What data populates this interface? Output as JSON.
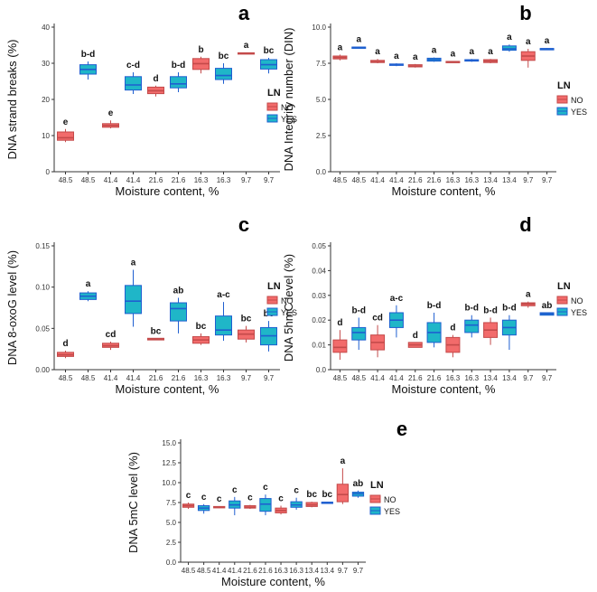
{
  "legend": {
    "title": "LN",
    "entries": [
      "NO",
      "YES"
    ]
  },
  "colors": {
    "NO": "#f26b6b",
    "YES": "#1fb6c8",
    "NO_dark": "#c44a4a",
    "YES_dark": "#1f5fd0"
  },
  "chart_data": [
    {
      "id": "a",
      "type": "box",
      "panel_label": "a",
      "ylabel": "DNA strand breaks (%)",
      "xlabel": "Moisture content, %",
      "ylim": [
        0,
        40
      ],
      "yticks": [
        0,
        10,
        20,
        30,
        40
      ],
      "tick_labels": [
        "0",
        "10",
        "20",
        "30",
        "40"
      ],
      "categories": [
        "48.5",
        "48.5",
        "41.4",
        "41.4",
        "21.6",
        "21.6",
        "16.3",
        "16.3",
        "9.7",
        "9.7"
      ],
      "groups": [
        "NO",
        "YES",
        "NO",
        "YES",
        "NO",
        "YES",
        "NO",
        "YES",
        "NO",
        "YES"
      ],
      "letters": [
        "e",
        "b-d",
        "e",
        "c-d",
        "d",
        "b-d",
        "b",
        "bc",
        "a",
        "bc"
      ],
      "boxes": [
        {
          "min": 8.2,
          "q1": 8.7,
          "median": 9.4,
          "q3": 11.0,
          "max": 11.8
        },
        {
          "min": 25.5,
          "q1": 27.0,
          "median": 28.3,
          "q3": 29.6,
          "max": 30.5
        },
        {
          "min": 12.0,
          "q1": 12.3,
          "median": 12.8,
          "q3": 13.3,
          "max": 14.2
        },
        {
          "min": 21.5,
          "q1": 22.6,
          "median": 24.0,
          "q3": 26.3,
          "max": 27.5
        },
        {
          "min": 20.8,
          "q1": 21.6,
          "median": 22.4,
          "q3": 23.4,
          "max": 23.8
        },
        {
          "min": 22.0,
          "q1": 23.2,
          "median": 24.3,
          "q3": 26.3,
          "max": 27.5
        },
        {
          "min": 27.2,
          "q1": 28.3,
          "median": 29.9,
          "q3": 31.3,
          "max": 31.8
        },
        {
          "min": 24.3,
          "q1": 25.5,
          "median": 26.6,
          "q3": 28.6,
          "max": 30.0
        },
        {
          "min": 32.5,
          "q1": 32.6,
          "median": 32.7,
          "q3": 32.9,
          "max": 33.0
        },
        {
          "min": 27.2,
          "q1": 28.4,
          "median": 29.6,
          "q3": 31.0,
          "max": 31.5
        }
      ]
    },
    {
      "id": "b",
      "type": "box",
      "panel_label": "b",
      "ylabel": "DNA Integrity number (DIN)",
      "xlabel": "Moisture content, %",
      "ylim": [
        0,
        10
      ],
      "yticks": [
        0,
        2.5,
        5,
        7.5,
        10
      ],
      "tick_labels": [
        "0.0",
        "2.5",
        "5.0",
        "7.5",
        "10.0"
      ],
      "categories": [
        "48.5",
        "48.5",
        "41.4",
        "41.4",
        "21.6",
        "21.6",
        "16.3",
        "16.3",
        "13.4",
        "13.4",
        "9.7",
        "9.7"
      ],
      "groups": [
        "NO",
        "YES",
        "NO",
        "YES",
        "NO",
        "YES",
        "NO",
        "YES",
        "NO",
        "YES",
        "NO",
        "YES"
      ],
      "letters": [
        "a",
        "a",
        "a",
        "a",
        "a",
        "a",
        "a",
        "a",
        "a",
        "a",
        "a",
        "a"
      ],
      "boxes": [
        {
          "min": 7.7,
          "q1": 7.8,
          "median": 7.9,
          "q3": 8.0,
          "max": 8.1
        },
        {
          "min": 8.55,
          "q1": 8.58,
          "median": 8.6,
          "q3": 8.62,
          "max": 8.65
        },
        {
          "min": 7.5,
          "q1": 7.55,
          "median": 7.6,
          "q3": 7.7,
          "max": 7.8
        },
        {
          "min": 7.3,
          "q1": 7.35,
          "median": 7.4,
          "q3": 7.45,
          "max": 7.5
        },
        {
          "min": 7.2,
          "q1": 7.25,
          "median": 7.3,
          "q3": 7.4,
          "max": 7.45
        },
        {
          "min": 7.6,
          "q1": 7.65,
          "median": 7.75,
          "q3": 7.85,
          "max": 7.9
        },
        {
          "min": 7.55,
          "q1": 7.57,
          "median": 7.6,
          "q3": 7.63,
          "max": 7.65
        },
        {
          "min": 7.6,
          "q1": 7.65,
          "median": 7.7,
          "q3": 7.75,
          "max": 7.8
        },
        {
          "min": 7.5,
          "q1": 7.55,
          "median": 7.65,
          "q3": 7.75,
          "max": 7.8
        },
        {
          "min": 8.3,
          "q1": 8.4,
          "median": 8.5,
          "q3": 8.7,
          "max": 8.8
        },
        {
          "min": 7.2,
          "q1": 7.7,
          "median": 8.0,
          "q3": 8.3,
          "max": 8.5
        },
        {
          "min": 8.45,
          "q1": 8.48,
          "median": 8.5,
          "q3": 8.52,
          "max": 8.55
        }
      ]
    },
    {
      "id": "c",
      "type": "box",
      "panel_label": "c",
      "ylabel": "DNA 8-oxoG level (%)",
      "xlabel": "Moisture content, %",
      "ylim": [
        0,
        0.15
      ],
      "yticks": [
        0,
        0.05,
        0.1,
        0.15
      ],
      "tick_labels": [
        "0.00",
        "0.05",
        "0.10",
        "0.15"
      ],
      "categories": [
        "48.5",
        "48.5",
        "41.4",
        "41.4",
        "21.6",
        "21.6",
        "16.3",
        "16.3",
        "9.7",
        "9.7"
      ],
      "groups": [
        "NO",
        "YES",
        "NO",
        "YES",
        "NO",
        "YES",
        "NO",
        "YES",
        "NO",
        "YES"
      ],
      "letters": [
        "d",
        "a",
        "cd",
        "a",
        "bc",
        "ab",
        "bc",
        "a-c",
        "bc",
        "bc"
      ],
      "boxes": [
        {
          "min": 0.014,
          "q1": 0.016,
          "median": 0.018,
          "q3": 0.021,
          "max": 0.023
        },
        {
          "min": 0.083,
          "q1": 0.085,
          "median": 0.089,
          "q3": 0.093,
          "max": 0.095
        },
        {
          "min": 0.024,
          "q1": 0.027,
          "median": 0.029,
          "q3": 0.032,
          "max": 0.034
        },
        {
          "min": 0.052,
          "q1": 0.068,
          "median": 0.083,
          "q3": 0.102,
          "max": 0.121
        },
        {
          "min": 0.036,
          "q1": 0.036,
          "median": 0.037,
          "q3": 0.038,
          "max": 0.038
        },
        {
          "min": 0.044,
          "q1": 0.059,
          "median": 0.074,
          "q3": 0.081,
          "max": 0.087
        },
        {
          "min": 0.03,
          "q1": 0.032,
          "median": 0.036,
          "q3": 0.04,
          "max": 0.044
        },
        {
          "min": 0.035,
          "q1": 0.042,
          "median": 0.048,
          "q3": 0.065,
          "max": 0.082
        },
        {
          "min": 0.033,
          "q1": 0.037,
          "median": 0.043,
          "q3": 0.048,
          "max": 0.053
        },
        {
          "min": 0.022,
          "q1": 0.03,
          "median": 0.041,
          "q3": 0.051,
          "max": 0.059
        }
      ]
    },
    {
      "id": "d",
      "type": "box",
      "panel_label": "d",
      "ylabel": "DNA 5hmC level (%)",
      "xlabel": "Moisture content, %",
      "ylim": [
        0,
        0.05
      ],
      "yticks": [
        0,
        0.01,
        0.02,
        0.03,
        0.04,
        0.05
      ],
      "tick_labels": [
        "0.0",
        "0.01",
        "0.02",
        "0.03",
        "0.04",
        "0.05"
      ],
      "categories": [
        "48.5",
        "48.5",
        "41.4",
        "41.4",
        "21.6",
        "21.6",
        "16.3",
        "16.3",
        "13.4",
        "13.4",
        "9.7",
        "9.7"
      ],
      "groups": [
        "NO",
        "YES",
        "NO",
        "YES",
        "NO",
        "YES",
        "NO",
        "YES",
        "NO",
        "YES",
        "NO",
        "YES"
      ],
      "letters": [
        "d",
        "b-d",
        "cd",
        "a-c",
        "d",
        "b-d",
        "d",
        "b-d",
        "b-d",
        "b-d",
        "a",
        "ab"
      ],
      "boxes": [
        {
          "min": 0.004,
          "q1": 0.007,
          "median": 0.009,
          "q3": 0.012,
          "max": 0.016
        },
        {
          "min": 0.008,
          "q1": 0.012,
          "median": 0.015,
          "q3": 0.017,
          "max": 0.021
        },
        {
          "min": 0.005,
          "q1": 0.008,
          "median": 0.011,
          "q3": 0.014,
          "max": 0.018
        },
        {
          "min": 0.013,
          "q1": 0.017,
          "median": 0.02,
          "q3": 0.023,
          "max": 0.026
        },
        {
          "min": 0.009,
          "q1": 0.009,
          "median": 0.01,
          "q3": 0.011,
          "max": 0.011
        },
        {
          "min": 0.009,
          "q1": 0.011,
          "median": 0.015,
          "q3": 0.019,
          "max": 0.023
        },
        {
          "min": 0.005,
          "q1": 0.007,
          "median": 0.01,
          "q3": 0.013,
          "max": 0.014
        },
        {
          "min": 0.013,
          "q1": 0.015,
          "median": 0.018,
          "q3": 0.02,
          "max": 0.022
        },
        {
          "min": 0.01,
          "q1": 0.013,
          "median": 0.016,
          "q3": 0.019,
          "max": 0.021
        },
        {
          "min": 0.008,
          "q1": 0.014,
          "median": 0.017,
          "q3": 0.02,
          "max": 0.022
        },
        {
          "min": 0.025,
          "q1": 0.0258,
          "median": 0.0265,
          "q3": 0.027,
          "max": 0.0275
        },
        {
          "min": 0.022,
          "q1": 0.022,
          "median": 0.0225,
          "q3": 0.023,
          "max": 0.023
        }
      ]
    },
    {
      "id": "e",
      "type": "box",
      "panel_label": "e",
      "ylabel": "DNA 5mC level (%)",
      "xlabel": "Moisture content, %",
      "ylim": [
        0,
        15
      ],
      "yticks": [
        0,
        2.5,
        5,
        7.5,
        10,
        12.5,
        15
      ],
      "tick_labels": [
        "0.0",
        "2.5",
        "5.0",
        "7.5",
        "10.0",
        "12.5",
        "15.0"
      ],
      "categories": [
        "48.5",
        "48.5",
        "41.4",
        "41.4",
        "21.6",
        "21.6",
        "16.3",
        "16.3",
        "13.4",
        "13.4",
        "9.7",
        "9.7"
      ],
      "groups": [
        "NO",
        "YES",
        "NO",
        "YES",
        "NO",
        "YES",
        "NO",
        "YES",
        "NO",
        "YES",
        "NO",
        "YES"
      ],
      "letters": [
        "c",
        "c",
        "c",
        "c",
        "c",
        "c",
        "c",
        "c",
        "bc",
        "bc",
        "a",
        "ab"
      ],
      "boxes": [
        {
          "min": 6.7,
          "q1": 6.9,
          "median": 7.1,
          "q3": 7.3,
          "max": 7.5
        },
        {
          "min": 6.1,
          "q1": 6.5,
          "median": 6.8,
          "q3": 7.1,
          "max": 7.3
        },
        {
          "min": 6.8,
          "q1": 6.85,
          "median": 6.9,
          "q3": 7.0,
          "max": 7.05
        },
        {
          "min": 5.9,
          "q1": 6.8,
          "median": 7.2,
          "q3": 7.7,
          "max": 8.2
        },
        {
          "min": 6.7,
          "q1": 6.8,
          "median": 6.9,
          "q3": 7.1,
          "max": 7.2
        },
        {
          "min": 5.9,
          "q1": 6.4,
          "median": 7.3,
          "q3": 8.0,
          "max": 8.5
        },
        {
          "min": 6.0,
          "q1": 6.2,
          "median": 6.5,
          "q3": 6.8,
          "max": 7.1
        },
        {
          "min": 6.6,
          "q1": 6.9,
          "median": 7.2,
          "q3": 7.6,
          "max": 8.1
        },
        {
          "min": 6.9,
          "q1": 7.0,
          "median": 7.2,
          "q3": 7.5,
          "max": 7.6
        },
        {
          "min": 7.4,
          "q1": 7.45,
          "median": 7.5,
          "q3": 7.55,
          "max": 7.6
        },
        {
          "min": 7.3,
          "q1": 7.6,
          "median": 8.5,
          "q3": 9.8,
          "max": 11.8
        },
        {
          "min": 8.1,
          "q1": 8.3,
          "median": 8.6,
          "q3": 8.8,
          "max": 9.0
        }
      ]
    }
  ]
}
